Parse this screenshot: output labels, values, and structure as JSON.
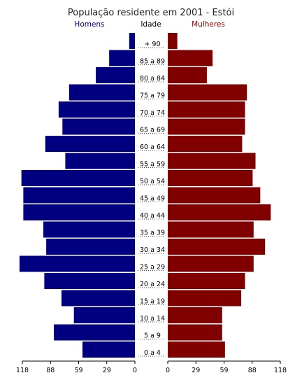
{
  "chart_data": {
    "type": "bar",
    "orientation": "horizontal-population-pyramid",
    "title": "População residente em 2001 - Estói",
    "left_label": "Homens",
    "center_label": "Idade",
    "right_label": "Mulheres",
    "categories": [
      "+ 90",
      "85 a 89",
      "80 a 84",
      "75 a 79",
      "70 a 74",
      "65 a 69",
      "60 a 64",
      "55 a 59",
      "50 a 54",
      "45 a 49",
      "40 a 44",
      "35 a 39",
      "30 a 34",
      "25 a 29",
      "20 a 24",
      "15 a 19",
      "10 a 14",
      "5 a 9",
      "0 a 4"
    ],
    "series": [
      {
        "name": "Homens",
        "values": [
          6,
          27,
          41,
          69,
          80,
          76,
          94,
          73,
          119,
          117,
          117,
          96,
          93,
          121,
          95,
          77,
          64,
          85,
          55
        ]
      },
      {
        "name": "Mulheres",
        "values": [
          10,
          47,
          41,
          83,
          81,
          81,
          78,
          92,
          89,
          97,
          108,
          90,
          102,
          90,
          81,
          77,
          57,
          57,
          60
        ]
      }
    ],
    "xlim": [
      0,
      118
    ],
    "tick_labels_left": [
      "118",
      "88",
      "59",
      "29",
      "0"
    ],
    "tick_labels_right": [
      "0",
      "29",
      "59",
      "88",
      "118"
    ],
    "colors": {
      "men": "#000080",
      "women": "#800000",
      "title": "#222222"
    }
  }
}
